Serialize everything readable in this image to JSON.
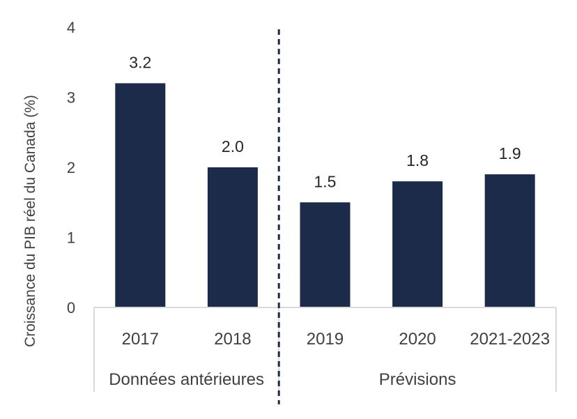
{
  "chart_data": {
    "type": "bar",
    "title": "",
    "ylabel": "Croissance du PIB réel du Canada (%)",
    "xlabel": "",
    "ylim": [
      0,
      4
    ],
    "yticks": [
      "0",
      "1",
      "2",
      "3",
      "4"
    ],
    "categories": [
      "2017",
      "2018",
      "2019",
      "2020",
      "2021-2023"
    ],
    "values": [
      3.2,
      2.0,
      1.5,
      1.8,
      1.9
    ],
    "data_labels": [
      "3.2",
      "2.0",
      "1.5",
      "1.8",
      "1.9"
    ],
    "groups": [
      {
        "label": "Données antérieures",
        "categories": [
          "2017",
          "2018"
        ]
      },
      {
        "label": "Prévisions",
        "categories": [
          "2019",
          "2020",
          "2021-2023"
        ]
      }
    ],
    "grid": false,
    "divider": "dashed line between 2018 and 2019",
    "colors": {
      "bar": "#1c2b4a",
      "divider": "#1c2b4a",
      "axis": "#d9d9d9"
    }
  }
}
